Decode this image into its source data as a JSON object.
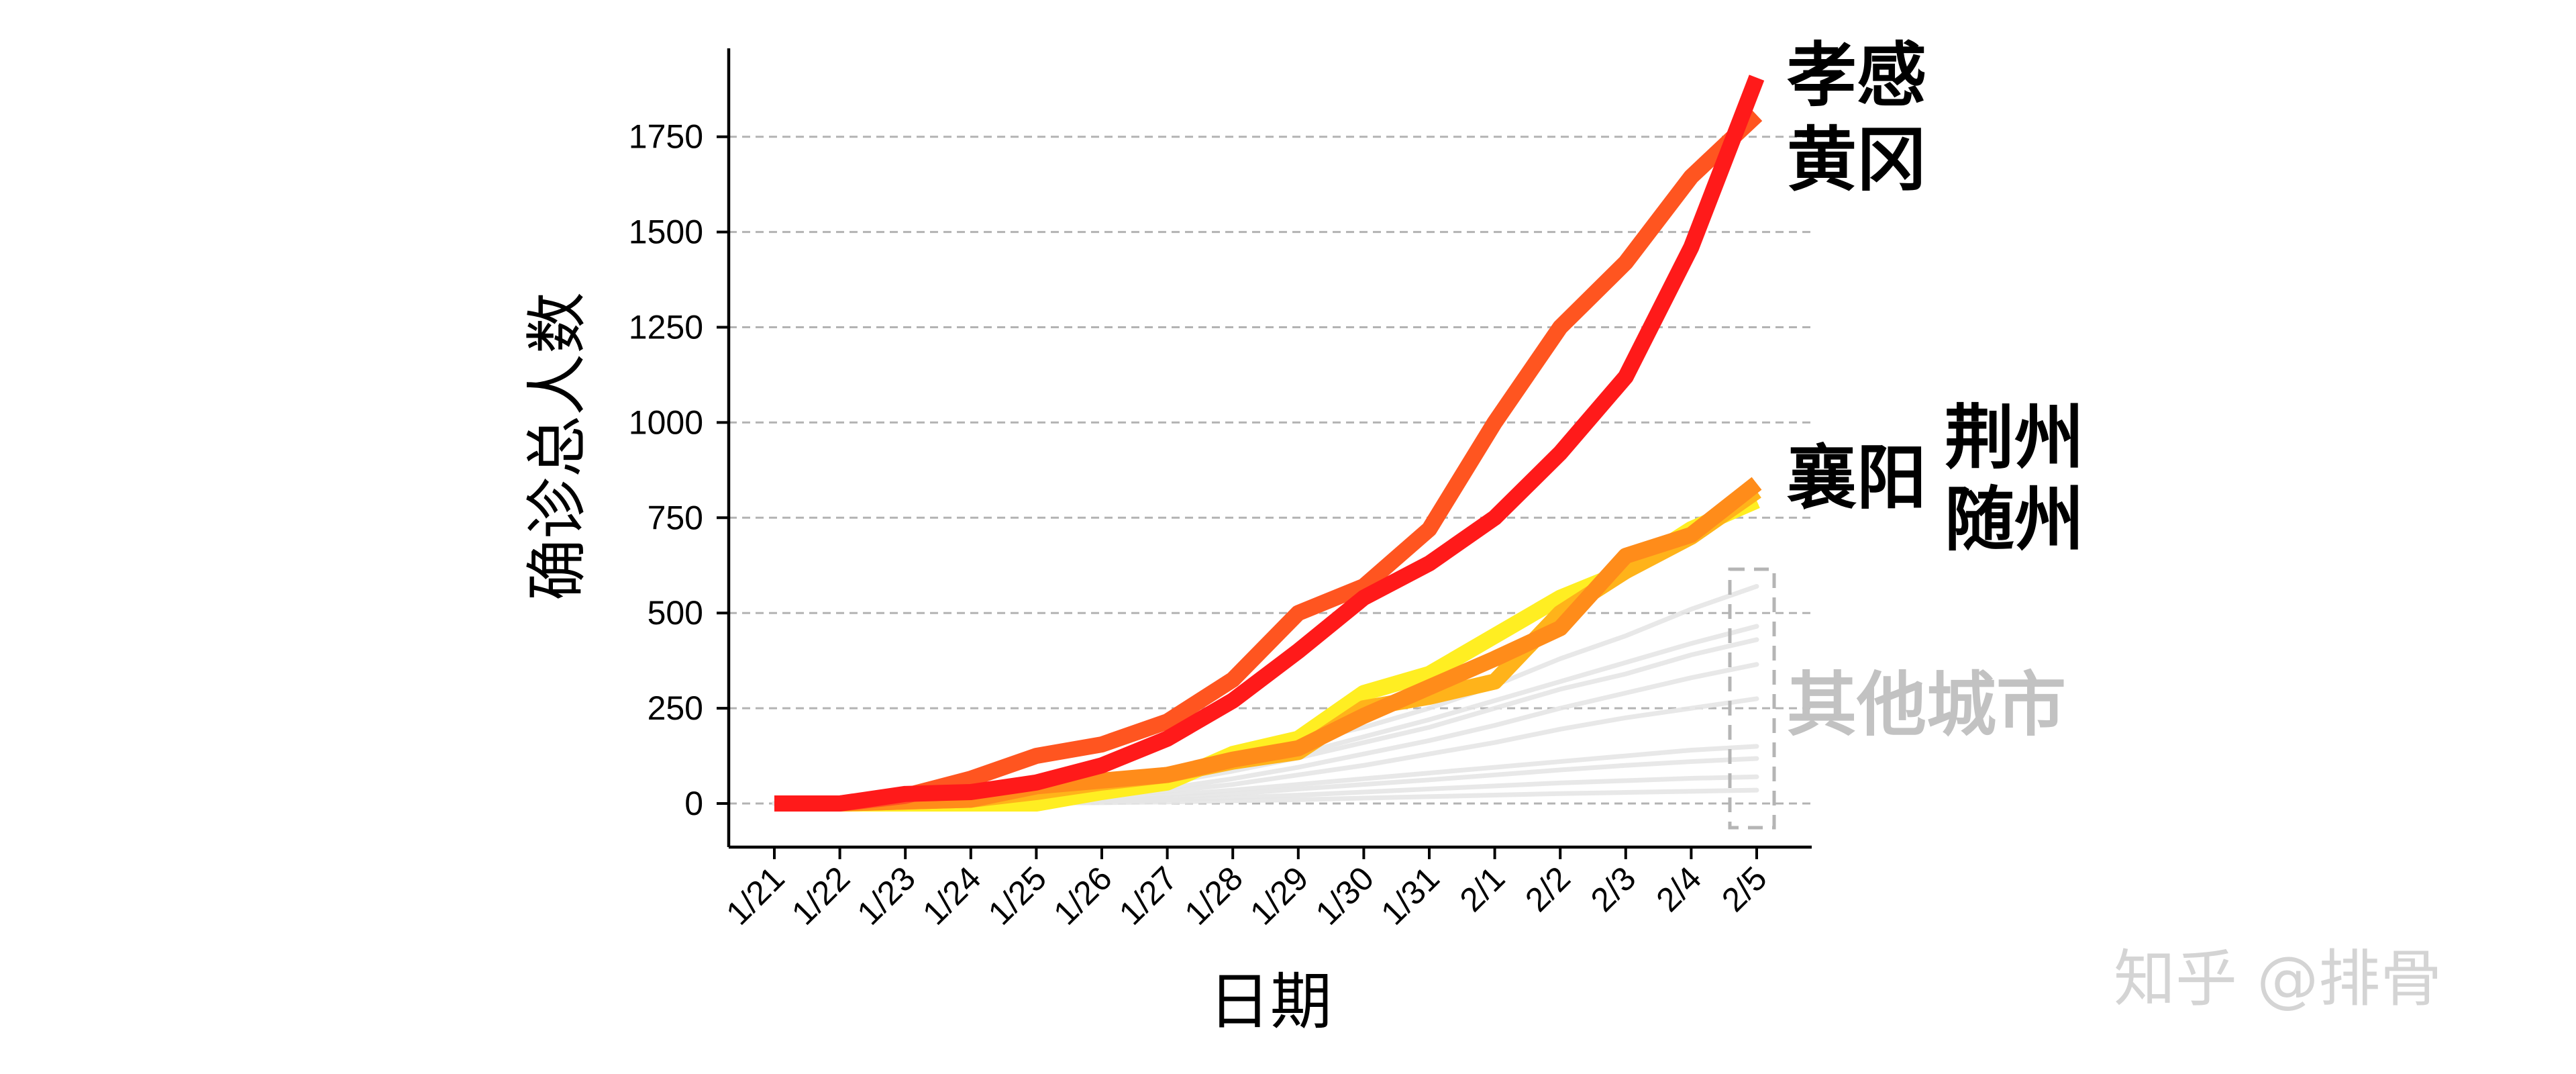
{
  "chart_data": {
    "type": "line",
    "title": "",
    "xlabel": "日期",
    "ylabel": "确诊总人数",
    "categories": [
      "1/21",
      "1/22",
      "1/23",
      "1/24",
      "1/25",
      "1/26",
      "1/27",
      "1/28",
      "1/29",
      "1/30",
      "1/31",
      "2/1",
      "2/2",
      "2/3",
      "2/4",
      "2/5"
    ],
    "yticks": [
      0,
      250,
      500,
      750,
      1000,
      1250,
      1500,
      1750
    ],
    "ylim": [
      -90,
      1980
    ],
    "grid": "horizontal-dashed",
    "series": [
      {
        "name": "孝感",
        "color": "#ff1a1a",
        "role": "highlight",
        "values": [
          0,
          0,
          25,
          30,
          55,
          100,
          170,
          270,
          400,
          540,
          630,
          750,
          920,
          1120,
          1460,
          1905
        ]
      },
      {
        "name": "黄冈",
        "color": "#ff5520",
        "role": "highlight",
        "values": [
          0,
          0,
          20,
          65,
          125,
          155,
          215,
          325,
          500,
          570,
          720,
          1000,
          1250,
          1420,
          1645,
          1807
        ]
      },
      {
        "name": "襄阳",
        "color": "#ff8c1a",
        "role": "highlight",
        "values": [
          0,
          0,
          5,
          10,
          45,
          60,
          75,
          115,
          145,
          230,
          305,
          380,
          460,
          650,
          705,
          840
        ]
      },
      {
        "name": "荆州",
        "color": "#ffb31a",
        "role": "highlight",
        "values": [
          0,
          0,
          5,
          10,
          30,
          55,
          75,
          110,
          135,
          250,
          280,
          320,
          500,
          610,
          700,
          820
        ]
      },
      {
        "name": "随州",
        "color": "#ffee22",
        "role": "highlight",
        "values": [
          0,
          0,
          0,
          0,
          0,
          30,
          55,
          130,
          170,
          290,
          340,
          440,
          540,
          610,
          720,
          795
        ]
      },
      {
        "name": "",
        "color": "#e5e5e5",
        "role": "background",
        "values": [
          0,
          0,
          3,
          8,
          20,
          45,
          80,
          120,
          160,
          200,
          250,
          310,
          380,
          440,
          510,
          570
        ]
      },
      {
        "name": "",
        "color": "#e5e5e5",
        "role": "background",
        "values": [
          0,
          0,
          2,
          6,
          15,
          35,
          60,
          95,
          130,
          175,
          220,
          270,
          320,
          370,
          420,
          465
        ]
      },
      {
        "name": "",
        "color": "#e5e5e5",
        "role": "background",
        "values": [
          0,
          0,
          2,
          5,
          12,
          30,
          55,
          85,
          120,
          160,
          200,
          250,
          300,
          340,
          390,
          430
        ]
      },
      {
        "name": "",
        "color": "#e5e5e5",
        "role": "background",
        "values": [
          0,
          0,
          1,
          4,
          10,
          22,
          40,
          65,
          95,
          130,
          165,
          205,
          250,
          290,
          330,
          365
        ]
      },
      {
        "name": "",
        "color": "#e5e5e5",
        "role": "background",
        "values": [
          0,
          0,
          1,
          3,
          8,
          18,
          32,
          50,
          75,
          100,
          130,
          160,
          195,
          225,
          250,
          275
        ]
      },
      {
        "name": "",
        "color": "#e5e5e5",
        "role": "background",
        "values": [
          0,
          0,
          1,
          2,
          5,
          12,
          22,
          35,
          50,
          65,
          80,
          95,
          110,
          125,
          140,
          150
        ]
      },
      {
        "name": "",
        "color": "#e5e5e5",
        "role": "background",
        "values": [
          0,
          0,
          0,
          1,
          3,
          8,
          15,
          25,
          38,
          50,
          62,
          75,
          88,
          100,
          110,
          118
        ]
      },
      {
        "name": "",
        "color": "#e5e5e5",
        "role": "background",
        "values": [
          0,
          0,
          0,
          1,
          2,
          5,
          9,
          15,
          22,
          30,
          38,
          46,
          54,
          60,
          66,
          70
        ]
      },
      {
        "name": "",
        "color": "#e5e5e5",
        "role": "background",
        "values": [
          0,
          0,
          0,
          0,
          1,
          2,
          4,
          7,
          10,
          14,
          18,
          22,
          26,
          29,
          32,
          35
        ]
      }
    ],
    "annotations": [
      {
        "text": "孝感",
        "color": "#000000"
      },
      {
        "text": "黄冈",
        "color": "#000000"
      },
      {
        "text": "襄阳",
        "color": "#000000"
      },
      {
        "text": "荆州",
        "color": "#000000"
      },
      {
        "text": "随州",
        "color": "#000000"
      },
      {
        "text": "其他城市",
        "color": "#c2c2c2"
      }
    ]
  },
  "watermark": "知乎 @排骨"
}
